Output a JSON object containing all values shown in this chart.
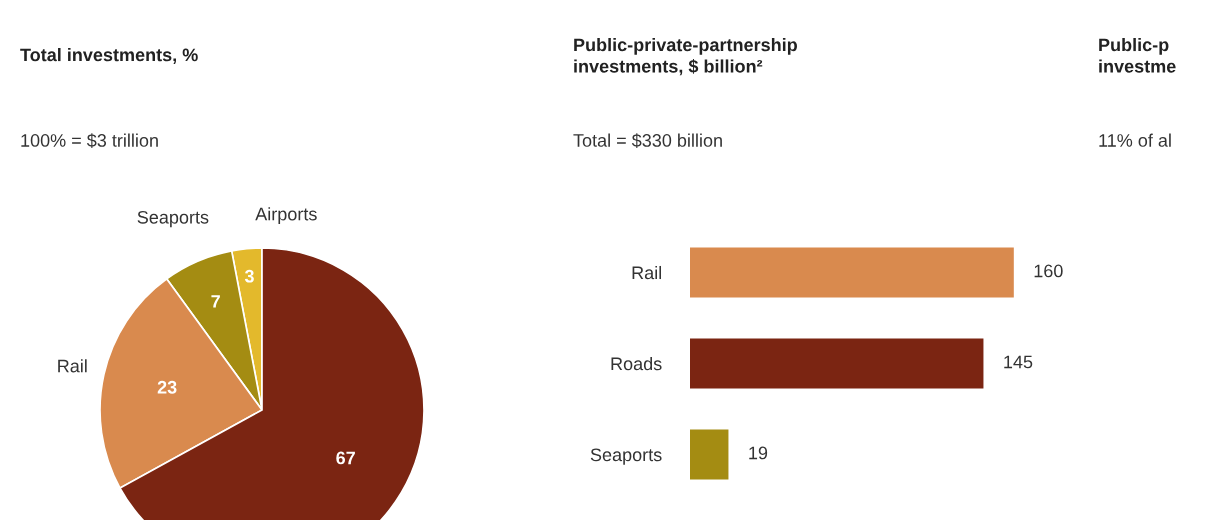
{
  "chart_data": [
    {
      "type": "pie",
      "title": "Total investments, %",
      "subtitle": "100% = $3 trillion",
      "categories": [
        "Airports",
        "Seaports",
        "Rail",
        null
      ],
      "values": [
        3,
        7,
        23,
        67
      ],
      "colors": [
        "#e3b92c",
        "#a48c12",
        "#d98a4e",
        "#7b2512"
      ],
      "data_labels": true
    },
    {
      "type": "bar",
      "orientation": "horizontal",
      "title": "Public-private-partnership\ninvestments, $ billion²",
      "subtitle": "Total = $330 billion",
      "categories": [
        "Rail",
        "Roads",
        "Seaports"
      ],
      "values": [
        160,
        145,
        19
      ],
      "colors": [
        "#d98a4e",
        "#7b2512",
        "#a48c12"
      ],
      "tick_labels": "y",
      "data_labels": true
    },
    {
      "type": "other",
      "title": "Public-p\ninvestme",
      "subtitle": "11% of al"
    }
  ]
}
